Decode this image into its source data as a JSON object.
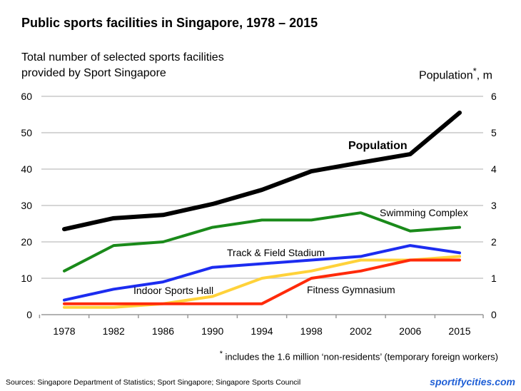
{
  "chart_data": {
    "type": "line",
    "title": "Public sports facilities in Singapore, 1978 – 2015",
    "ylabel_left": [
      "Total number of selected sports facilities",
      "provided by Sport Singapore"
    ],
    "ylabel_right": "Population",
    "ylabel_right_marker": "*",
    "ylabel_right_unit": ", m",
    "categories": [
      "1978",
      "1982",
      "1986",
      "1990",
      "1994",
      "1998",
      "2002",
      "2006",
      "2015"
    ],
    "ylim_left": [
      0,
      60
    ],
    "yticks_left": [
      "0",
      "10",
      "20",
      "30",
      "40",
      "50",
      "60"
    ],
    "ylim_right": [
      0,
      6
    ],
    "yticks_right": [
      "0",
      "1",
      "2",
      "3",
      "4",
      "5",
      "6"
    ],
    "grid": true,
    "series": [
      {
        "name": "Population",
        "axis": "right",
        "color": "#000000",
        "values": [
          2.35,
          2.65,
          2.74,
          3.04,
          3.43,
          3.94,
          4.18,
          4.41,
          5.55
        ]
      },
      {
        "name": "Swimming Complex",
        "axis": "left",
        "color": "#1a8a1a",
        "values": [
          12,
          19,
          20,
          24,
          26,
          26,
          28,
          23,
          24
        ]
      },
      {
        "name": "Track & Field Stadium",
        "axis": "left",
        "color": "#1c2cf0",
        "values": [
          4,
          7,
          9,
          13,
          14,
          15,
          16,
          19,
          17
        ]
      },
      {
        "name": "Indoor Sports Hall",
        "axis": "left",
        "color": "#ffd23a",
        "values": [
          2,
          2,
          3,
          5,
          10,
          12,
          15,
          15,
          16
        ]
      },
      {
        "name": "Fitness Gymnasium",
        "axis": "left",
        "color": "#ff2a0a",
        "values": [
          3,
          3,
          3,
          3,
          3,
          10,
          12,
          15,
          15
        ]
      }
    ],
    "footnote_marker": "*",
    "footnote": "includes the 1.6 million ‘non-residents’ (temporary foreign workers)"
  },
  "sources": "Sources:  Singapore Department of Statistics; Sport Singapore; Singapore Sports Council",
  "brand": "sportifycities.com"
}
